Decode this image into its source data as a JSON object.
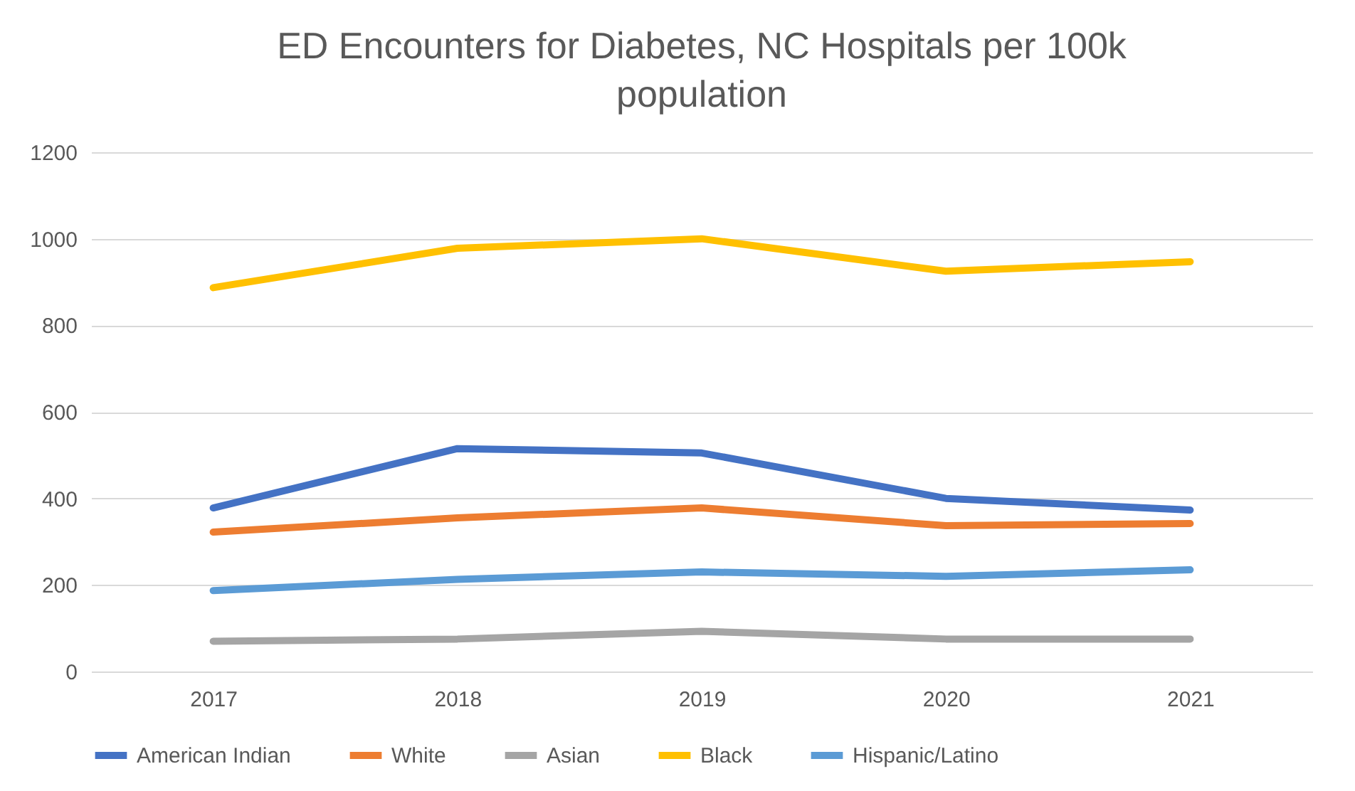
{
  "chart_data": {
    "type": "line",
    "title": "ED Encounters for Diabetes, NC Hospitals per 100k population",
    "categories": [
      "2017",
      "2018",
      "2019",
      "2020",
      "2021"
    ],
    "series": [
      {
        "name": "American Indian",
        "color": "#4472c4",
        "values": [
          378,
          515,
          505,
          400,
          373
        ]
      },
      {
        "name": "White",
        "color": "#ed7d31",
        "values": [
          322,
          355,
          378,
          337,
          342
        ]
      },
      {
        "name": "Asian",
        "color": "#a5a5a5",
        "values": [
          70,
          75,
          93,
          75,
          75
        ]
      },
      {
        "name": "Black",
        "color": "#ffc000",
        "values": [
          887,
          978,
          1000,
          925,
          947
        ]
      },
      {
        "name": "Hispanic/Latino",
        "color": "#5b9bd5",
        "values": [
          187,
          213,
          230,
          220,
          235
        ]
      }
    ],
    "ylim": [
      0,
      1200
    ],
    "yticks": [
      0,
      200,
      400,
      600,
      800,
      1000,
      1200
    ],
    "grid": "y",
    "legend": "bottom",
    "marker": "none",
    "line_style": "solid"
  }
}
